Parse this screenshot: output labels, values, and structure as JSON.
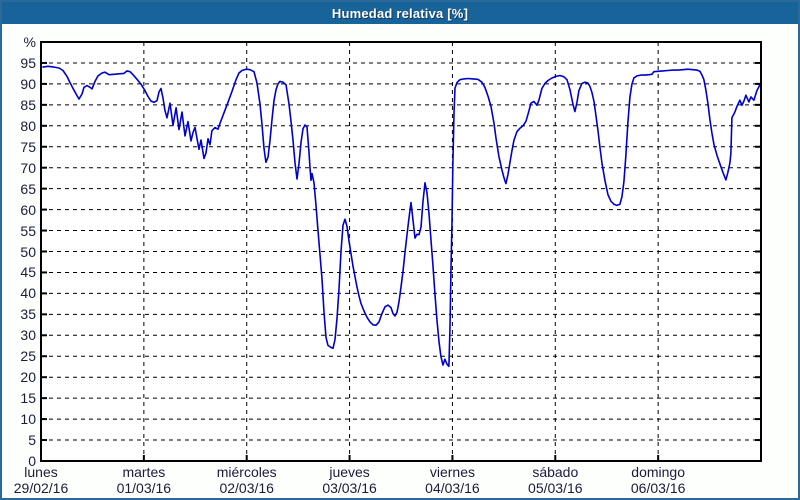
{
  "window": {
    "title": "Humedad relativa [%]",
    "titlebar_bg": "#19639b",
    "titlebar_text_color": "#ffffff",
    "border_color": "#2a6b9b",
    "background": "#fdfffd"
  },
  "chart_data": {
    "type": "line",
    "title": "Humedad relativa [%]",
    "ylabel": "%",
    "xlabel": "",
    "legend": "none",
    "grid": "dashed",
    "grid_color": "#000000",
    "axis_color": "#000000",
    "plot_bg": "#ffffff",
    "text_color": "#1b1b3a",
    "x_range": [
      0,
      7
    ],
    "y_range": [
      0,
      100
    ],
    "y_ticks": [
      0,
      5,
      10,
      15,
      20,
      25,
      30,
      35,
      40,
      45,
      50,
      55,
      60,
      65,
      70,
      75,
      80,
      85,
      90,
      95
    ],
    "x_ticks": [
      {
        "day": "lunes",
        "date": "29/02/16"
      },
      {
        "day": "martes",
        "date": "01/03/16"
      },
      {
        "day": "miércoles",
        "date": "02/03/16"
      },
      {
        "day": "jueves",
        "date": "03/03/16"
      },
      {
        "day": "viernes",
        "date": "04/03/16"
      },
      {
        "day": "sábado",
        "date": "05/03/16"
      },
      {
        "day": "domingo",
        "date": "06/03/16"
      }
    ],
    "series": [
      {
        "name": "Humedad relativa",
        "color": "#0000cc",
        "points": [
          [
            0.019,
            94
          ],
          [
            0.068,
            94.2
          ],
          [
            0.126,
            94
          ],
          [
            0.175,
            93.8
          ],
          [
            0.214,
            93.2
          ],
          [
            0.253,
            91.8
          ],
          [
            0.282,
            90.3
          ],
          [
            0.321,
            88.5
          ],
          [
            0.35,
            87.2
          ],
          [
            0.369,
            86.4
          ],
          [
            0.399,
            87.6
          ],
          [
            0.418,
            89.2
          ],
          [
            0.447,
            89.6
          ],
          [
            0.476,
            89.2
          ],
          [
            0.496,
            88.8
          ],
          [
            0.525,
            90.6
          ],
          [
            0.554,
            91.9
          ],
          [
            0.593,
            92.6
          ],
          [
            0.622,
            92.8
          ],
          [
            0.661,
            92.2
          ],
          [
            0.71,
            92.3
          ],
          [
            0.758,
            92.4
          ],
          [
            0.807,
            92.5
          ],
          [
            0.836,
            93.1
          ],
          [
            0.865,
            92.9
          ],
          [
            0.894,
            92.2
          ],
          [
            0.933,
            91.1
          ],
          [
            0.972,
            89.9
          ],
          [
            1.011,
            88.4
          ],
          [
            1.04,
            87
          ],
          [
            1.069,
            85.9
          ],
          [
            1.099,
            85.6
          ],
          [
            1.128,
            86
          ],
          [
            1.147,
            88.1
          ],
          [
            1.167,
            88.9
          ],
          [
            1.186,
            86.6
          ],
          [
            1.206,
            83.6
          ],
          [
            1.225,
            81.9
          ],
          [
            1.254,
            85.4
          ],
          [
            1.283,
            80.1
          ],
          [
            1.313,
            84.3
          ],
          [
            1.342,
            79.1
          ],
          [
            1.371,
            83.3
          ],
          [
            1.4,
            77.6
          ],
          [
            1.429,
            81
          ],
          [
            1.458,
            76.4
          ],
          [
            1.478,
            78.4
          ],
          [
            1.497,
            79.6
          ],
          [
            1.536,
            74.4
          ],
          [
            1.556,
            76.6
          ],
          [
            1.585,
            72.2
          ],
          [
            1.604,
            73.5
          ],
          [
            1.624,
            76.9
          ],
          [
            1.643,
            75.5
          ],
          [
            1.662,
            78.8
          ],
          [
            1.692,
            79.6
          ],
          [
            1.721,
            79.2
          ],
          [
            1.74,
            80.6
          ],
          [
            1.779,
            83.1
          ],
          [
            1.818,
            85.6
          ],
          [
            1.857,
            88.2
          ],
          [
            1.896,
            91
          ],
          [
            1.925,
            92.6
          ],
          [
            1.954,
            93.2
          ],
          [
            1.993,
            93.5
          ],
          [
            2.032,
            93.4
          ],
          [
            2.071,
            92.9
          ],
          [
            2.1,
            90.2
          ],
          [
            2.129,
            85.2
          ],
          [
            2.149,
            80.3
          ],
          [
            2.168,
            74.6
          ],
          [
            2.187,
            71.3
          ],
          [
            2.207,
            72.5
          ],
          [
            2.226,
            76.5
          ],
          [
            2.246,
            81.5
          ],
          [
            2.265,
            86
          ],
          [
            2.285,
            88.6
          ],
          [
            2.304,
            90
          ],
          [
            2.323,
            90.6
          ],
          [
            2.353,
            90.4
          ],
          [
            2.382,
            89.8
          ],
          [
            2.411,
            85.2
          ],
          [
            2.43,
            81.3
          ],
          [
            2.45,
            76.6
          ],
          [
            2.469,
            71.2
          ],
          [
            2.489,
            67.3
          ],
          [
            2.508,
            71
          ],
          [
            2.528,
            76
          ],
          [
            2.547,
            79.3
          ],
          [
            2.567,
            80.2
          ],
          [
            2.586,
            79.7
          ],
          [
            2.605,
            74
          ],
          [
            2.615,
            70
          ],
          [
            2.625,
            67
          ],
          [
            2.635,
            68.6
          ],
          [
            2.654,
            66.4
          ],
          [
            2.674,
            61
          ],
          [
            2.693,
            55
          ],
          [
            2.712,
            49.5
          ],
          [
            2.732,
            43.5
          ],
          [
            2.751,
            35.5
          ],
          [
            2.771,
            29.5
          ],
          [
            2.79,
            27.6
          ],
          [
            2.819,
            27.1
          ],
          [
            2.839,
            26.9
          ],
          [
            2.858,
            29
          ],
          [
            2.878,
            34
          ],
          [
            2.897,
            41
          ],
          [
            2.917,
            50
          ],
          [
            2.936,
            56.3
          ],
          [
            2.956,
            57.7
          ],
          [
            2.975,
            56
          ],
          [
            2.994,
            52.5
          ],
          [
            3.014,
            49.5
          ],
          [
            3.033,
            46.5
          ],
          [
            3.053,
            44
          ],
          [
            3.072,
            41.5
          ],
          [
            3.092,
            39.4
          ],
          [
            3.111,
            37.6
          ],
          [
            3.14,
            35.8
          ],
          [
            3.169,
            34.3
          ],
          [
            3.199,
            33.2
          ],
          [
            3.228,
            32.5
          ],
          [
            3.257,
            32.4
          ],
          [
            3.286,
            33.2
          ],
          [
            3.315,
            35.2
          ],
          [
            3.344,
            36.8
          ],
          [
            3.374,
            37.2
          ],
          [
            3.403,
            36.6
          ],
          [
            3.422,
            35.2
          ],
          [
            3.442,
            34.6
          ],
          [
            3.461,
            35.5
          ],
          [
            3.481,
            38
          ],
          [
            3.5,
            41.5
          ],
          [
            3.52,
            45.5
          ],
          [
            3.539,
            49.8
          ],
          [
            3.558,
            54
          ],
          [
            3.578,
            58
          ],
          [
            3.597,
            61.7
          ],
          [
            3.617,
            57.5
          ],
          [
            3.636,
            53.2
          ],
          [
            3.655,
            54.1
          ],
          [
            3.675,
            54
          ],
          [
            3.694,
            55.8
          ],
          [
            3.714,
            62
          ],
          [
            3.733,
            66.4
          ],
          [
            3.753,
            64
          ],
          [
            3.772,
            59
          ],
          [
            3.791,
            53
          ],
          [
            3.811,
            46.5
          ],
          [
            3.83,
            40
          ],
          [
            3.85,
            33.5
          ],
          [
            3.869,
            28.5
          ],
          [
            3.888,
            25
          ],
          [
            3.908,
            22.9
          ],
          [
            3.927,
            24.3
          ],
          [
            3.947,
            23.1
          ],
          [
            3.966,
            22.6
          ],
          [
            3.976,
            32
          ],
          [
            3.986,
            46
          ],
          [
            3.995,
            56
          ],
          [
            4.005,
            71
          ],
          [
            4.015,
            83
          ],
          [
            4.025,
            89
          ],
          [
            4.044,
            90.3
          ],
          [
            4.073,
            91
          ],
          [
            4.112,
            91.2
          ],
          [
            4.151,
            91.3
          ],
          [
            4.2,
            91.2
          ],
          [
            4.248,
            91.1
          ],
          [
            4.287,
            90.4
          ],
          [
            4.316,
            89.2
          ],
          [
            4.346,
            87.1
          ],
          [
            4.375,
            84.6
          ],
          [
            4.404,
            80.6
          ],
          [
            4.423,
            77.2
          ],
          [
            4.452,
            72.7
          ],
          [
            4.482,
            69.4
          ],
          [
            4.501,
            67.6
          ],
          [
            4.52,
            66.2
          ],
          [
            4.54,
            68.4
          ],
          [
            4.559,
            71.2
          ],
          [
            4.579,
            74.1
          ],
          [
            4.598,
            76.5
          ],
          [
            4.627,
            78.6
          ],
          [
            4.656,
            79.4
          ],
          [
            4.686,
            80
          ],
          [
            4.715,
            81.1
          ],
          [
            4.744,
            83.6
          ],
          [
            4.763,
            85.4
          ],
          [
            4.792,
            85.8
          ],
          [
            4.822,
            84.9
          ],
          [
            4.841,
            86.1
          ],
          [
            4.87,
            88.9
          ],
          [
            4.899,
            90.1
          ],
          [
            4.929,
            90.8
          ],
          [
            4.968,
            91.4
          ],
          [
            5.007,
            91.8
          ],
          [
            5.045,
            92
          ],
          [
            5.084,
            91.7
          ],
          [
            5.114,
            91
          ],
          [
            5.143,
            88.6
          ],
          [
            5.172,
            85.1
          ],
          [
            5.191,
            83.4
          ],
          [
            5.211,
            85.6
          ],
          [
            5.23,
            88.4
          ],
          [
            5.259,
            90.1
          ],
          [
            5.288,
            90.4
          ],
          [
            5.318,
            90.2
          ],
          [
            5.337,
            89.4
          ],
          [
            5.356,
            88
          ],
          [
            5.376,
            85.8
          ],
          [
            5.395,
            82.5
          ],
          [
            5.415,
            78.8
          ],
          [
            5.434,
            75
          ],
          [
            5.453,
            71.2
          ],
          [
            5.483,
            66.9
          ],
          [
            5.512,
            63.6
          ],
          [
            5.541,
            62
          ],
          [
            5.57,
            61.3
          ],
          [
            5.599,
            61
          ],
          [
            5.628,
            61.3
          ],
          [
            5.648,
            63
          ],
          [
            5.667,
            66.6
          ],
          [
            5.687,
            73
          ],
          [
            5.706,
            80.8
          ],
          [
            5.725,
            86.8
          ],
          [
            5.745,
            89.9
          ],
          [
            5.764,
            91.4
          ],
          [
            5.793,
            91.9
          ],
          [
            5.832,
            92.1
          ],
          [
            5.871,
            92.1
          ],
          [
            5.91,
            92.2
          ],
          [
            5.939,
            92.3
          ],
          [
            5.959,
            92.9
          ],
          [
            5.998,
            93
          ],
          [
            6.046,
            93.1
          ],
          [
            6.095,
            93.2
          ],
          [
            6.143,
            93.3
          ],
          [
            6.192,
            93.3
          ],
          [
            6.241,
            93.4
          ],
          [
            6.289,
            93.5
          ],
          [
            6.338,
            93.4
          ],
          [
            6.377,
            93.3
          ],
          [
            6.406,
            93
          ],
          [
            6.426,
            92.1
          ],
          [
            6.445,
            91
          ],
          [
            6.464,
            88.5
          ],
          [
            6.484,
            85.4
          ],
          [
            6.503,
            81.5
          ],
          [
            6.523,
            78.3
          ],
          [
            6.542,
            75.6
          ],
          [
            6.571,
            73
          ],
          [
            6.6,
            70.9
          ],
          [
            6.63,
            68.9
          ],
          [
            6.659,
            67.1
          ],
          [
            6.678,
            68.9
          ],
          [
            6.698,
            71.1
          ],
          [
            6.707,
            73.5
          ],
          [
            6.717,
            81.9
          ],
          [
            6.746,
            83.3
          ],
          [
            6.766,
            84.6
          ],
          [
            6.795,
            86.1
          ],
          [
            6.814,
            84.9
          ],
          [
            6.834,
            85.9
          ],
          [
            6.853,
            87.3
          ],
          [
            6.882,
            85.7
          ],
          [
            6.902,
            86.9
          ],
          [
            6.931,
            86.1
          ],
          [
            6.96,
            88.4
          ],
          [
            6.98,
            89.3
          ],
          [
            6.999,
            90.3
          ]
        ]
      }
    ]
  }
}
